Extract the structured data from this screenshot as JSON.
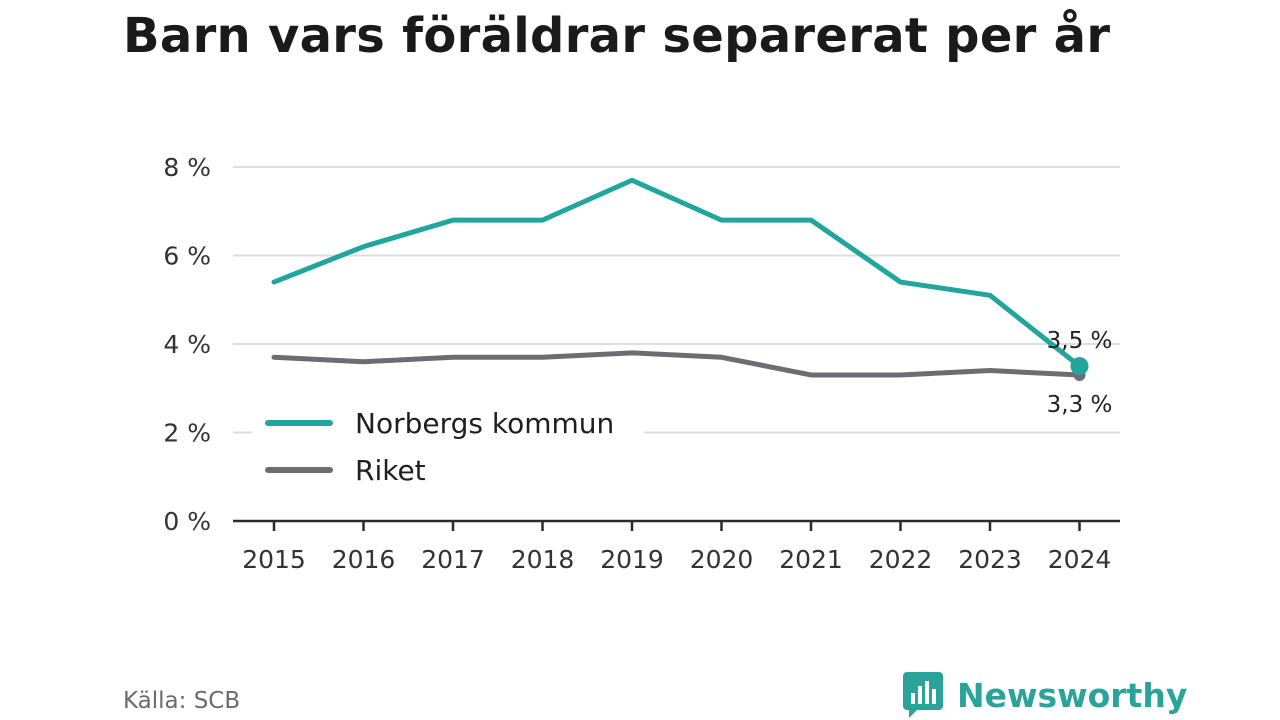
{
  "title": "Barn vars föräldrar separerat per år",
  "source": "Källa: SCB",
  "brand": {
    "name": "Newsworthy",
    "icon": "newsworthy-logo-icon"
  },
  "colors": {
    "series1": "#21a59c",
    "series2": "#6d6c72",
    "grid": "#dedede",
    "axis": "#2b2b2b"
  },
  "chart_data": {
    "type": "line",
    "title": "Barn vars föräldrar separerat per år",
    "x": [
      "2015",
      "2016",
      "2017",
      "2018",
      "2019",
      "2020",
      "2021",
      "2022",
      "2023",
      "2024"
    ],
    "series": [
      {
        "name": "Norbergs kommun",
        "values": [
          5.4,
          6.2,
          6.8,
          6.8,
          7.7,
          6.8,
          6.8,
          5.4,
          5.1,
          3.5
        ],
        "end_label": "3,5 %"
      },
      {
        "name": "Riket",
        "values": [
          3.7,
          3.6,
          3.7,
          3.7,
          3.8,
          3.7,
          3.3,
          3.3,
          3.4,
          3.3
        ],
        "end_label": "3,3 %"
      }
    ],
    "yticks": [
      0,
      2,
      4,
      6,
      8
    ],
    "ytick_labels": [
      "0 %",
      "2 %",
      "4 %",
      "6 %",
      "8 %"
    ],
    "ylim": [
      0,
      8
    ],
    "grid": true,
    "legend": "inside-bottom-left",
    "xlabel": "",
    "ylabel": ""
  }
}
